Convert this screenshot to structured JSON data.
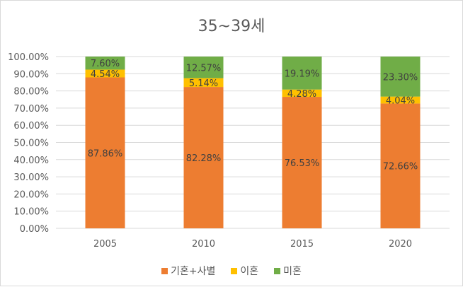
{
  "chart_data": {
    "type": "stacked-bar",
    "title": "35~39세",
    "categories": [
      "2005",
      "2010",
      "2015",
      "2020"
    ],
    "series": [
      {
        "name": "기혼+사별",
        "color": "#ED7D31",
        "values": [
          87.86,
          82.28,
          76.53,
          72.66
        ],
        "labels": [
          "87.86%",
          "82.28%",
          "76.53%",
          "72.66%"
        ]
      },
      {
        "name": "이혼",
        "color": "#FFC000",
        "values": [
          4.54,
          5.14,
          4.28,
          4.04
        ],
        "labels": [
          "4.54%",
          "5.14%",
          "4.28%",
          "4.04%"
        ]
      },
      {
        "name": "미혼",
        "color": "#70AD47",
        "values": [
          7.6,
          12.57,
          19.19,
          23.3
        ],
        "labels": [
          "7.60%",
          "12.57%",
          "19.19%",
          "23.30%"
        ]
      }
    ],
    "yticks": [
      "0.00%",
      "10.00%",
      "20.00%",
      "30.00%",
      "40.00%",
      "50.00%",
      "60.00%",
      "70.00%",
      "80.00%",
      "90.00%",
      "100.00%"
    ],
    "ylim": [
      0,
      100
    ],
    "grid": true,
    "legend": "bottom"
  }
}
